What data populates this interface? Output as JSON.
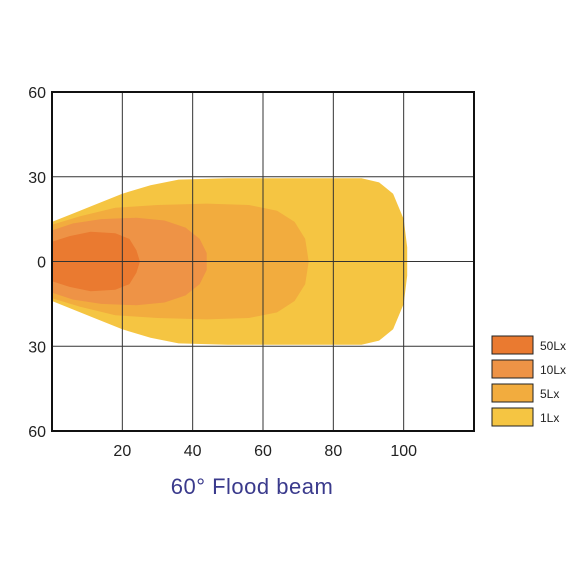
{
  "chart_data": {
    "type": "area",
    "title": "60° Flood beam",
    "xlabel": "",
    "ylabel": "",
    "xlim": [
      0,
      120
    ],
    "ylim": [
      -60,
      60
    ],
    "x_ticks": [
      "20",
      "40",
      "60",
      "80",
      "100"
    ],
    "y_ticks": [
      {
        "value": 60,
        "label": "60"
      },
      {
        "value": 30,
        "label": "30"
      },
      {
        "value": 0,
        "label": "0"
      },
      {
        "value": -30,
        "label": "30"
      },
      {
        "value": -60,
        "label": "60"
      }
    ],
    "grid": true,
    "legend_position": "right",
    "series": [
      {
        "name": "1Lx",
        "color": "#f5c542",
        "points": [
          [
            0,
            14
          ],
          [
            6,
            17
          ],
          [
            12,
            20
          ],
          [
            20,
            24
          ],
          [
            28,
            27
          ],
          [
            36,
            29
          ],
          [
            50,
            29.5
          ],
          [
            70,
            29.5
          ],
          [
            88,
            29.5
          ],
          [
            93,
            28
          ],
          [
            97,
            24
          ],
          [
            100,
            15
          ],
          [
            101,
            5
          ],
          [
            101,
            -5
          ],
          [
            100,
            -15
          ],
          [
            97,
            -24
          ],
          [
            93,
            -28
          ],
          [
            88,
            -29.5
          ],
          [
            70,
            -29.5
          ],
          [
            50,
            -29.5
          ],
          [
            36,
            -29
          ],
          [
            28,
            -27
          ],
          [
            20,
            -24
          ],
          [
            12,
            -20
          ],
          [
            6,
            -17
          ],
          [
            0,
            -14
          ]
        ]
      },
      {
        "name": "5Lx",
        "color": "#f2ac3e",
        "points": [
          [
            0,
            13
          ],
          [
            8,
            16
          ],
          [
            18,
            19
          ],
          [
            30,
            20
          ],
          [
            44,
            20.5
          ],
          [
            56,
            20
          ],
          [
            64,
            18
          ],
          [
            69,
            14
          ],
          [
            72,
            8
          ],
          [
            73,
            0
          ],
          [
            72,
            -8
          ],
          [
            69,
            -14
          ],
          [
            64,
            -18
          ],
          [
            56,
            -20
          ],
          [
            44,
            -20.5
          ],
          [
            30,
            -20
          ],
          [
            18,
            -19
          ],
          [
            8,
            -16
          ],
          [
            0,
            -13
          ]
        ]
      },
      {
        "name": "10Lx",
        "color": "#ee9346",
        "points": [
          [
            0,
            11
          ],
          [
            6,
            13.5
          ],
          [
            14,
            15
          ],
          [
            24,
            15.5
          ],
          [
            32,
            14.5
          ],
          [
            38,
            12
          ],
          [
            42,
            8
          ],
          [
            44,
            3
          ],
          [
            44,
            -3
          ],
          [
            42,
            -8
          ],
          [
            38,
            -12
          ],
          [
            32,
            -14.5
          ],
          [
            24,
            -15.5
          ],
          [
            14,
            -15
          ],
          [
            6,
            -13.5
          ],
          [
            0,
            -11
          ]
        ]
      },
      {
        "name": "50Lx",
        "color": "#ea7a30",
        "points": [
          [
            0,
            7
          ],
          [
            5,
            9
          ],
          [
            11,
            10.5
          ],
          [
            18,
            10
          ],
          [
            22,
            8
          ],
          [
            24,
            4
          ],
          [
            25,
            0
          ],
          [
            24,
            -4
          ],
          [
            22,
            -8
          ],
          [
            18,
            -10
          ],
          [
            11,
            -10.5
          ],
          [
            5,
            -9
          ],
          [
            0,
            -7
          ]
        ]
      }
    ]
  }
}
